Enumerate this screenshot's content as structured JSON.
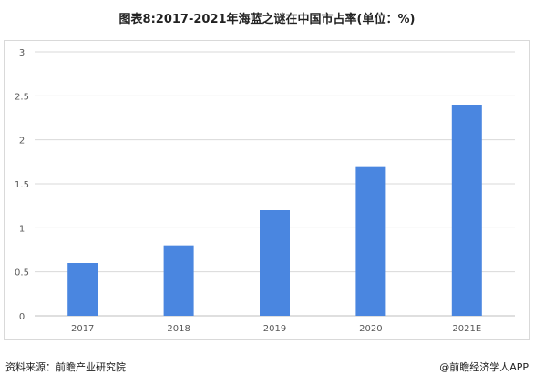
{
  "title": "图表8:2017-2021年海蓝之谜在中国市占率(单位：%)",
  "source": "资料来源：前瞻产业研究院",
  "credit": "@前瞻经济学人APP",
  "colors": {
    "bar": "#4a86e0",
    "grid": "#d9d9d9",
    "axis": "#bfbfbf",
    "text": "#595959"
  },
  "chart_data": {
    "type": "bar",
    "title": "图表8:2017-2021年海蓝之谜在中国市占率(单位：%)",
    "categories": [
      "2017",
      "2018",
      "2019",
      "2020",
      "2021E"
    ],
    "values": [
      0.6,
      0.8,
      1.2,
      1.7,
      2.4
    ],
    "ylim": [
      0,
      3
    ],
    "yticks": [
      "0",
      "0.5",
      "1",
      "1.5",
      "2",
      "2.5",
      "3"
    ],
    "xlabel": "",
    "ylabel": "",
    "grid": true,
    "legend": "none"
  }
}
